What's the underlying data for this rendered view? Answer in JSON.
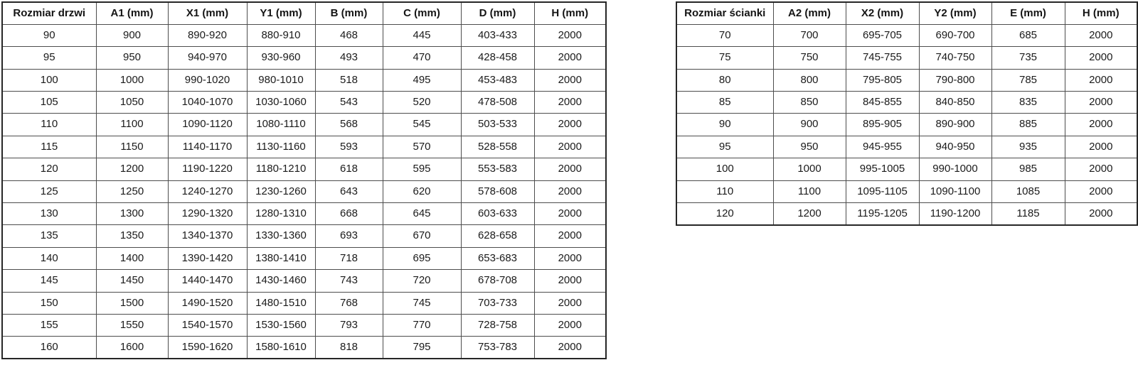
{
  "tables": [
    {
      "name": "door-size-table",
      "headers": [
        "Rozmiar drzwi",
        "A1 (mm)",
        "X1 (mm)",
        "Y1 (mm)",
        "B (mm)",
        "C (mm)",
        "D (mm)",
        "H (mm)"
      ],
      "rows": [
        [
          "90",
          "900",
          "890-920",
          "880-910",
          "468",
          "445",
          "403-433",
          "2000"
        ],
        [
          "95",
          "950",
          "940-970",
          "930-960",
          "493",
          "470",
          "428-458",
          "2000"
        ],
        [
          "100",
          "1000",
          "990-1020",
          "980-1010",
          "518",
          "495",
          "453-483",
          "2000"
        ],
        [
          "105",
          "1050",
          "1040-1070",
          "1030-1060",
          "543",
          "520",
          "478-508",
          "2000"
        ],
        [
          "110",
          "1100",
          "1090-1120",
          "1080-1110",
          "568",
          "545",
          "503-533",
          "2000"
        ],
        [
          "115",
          "1150",
          "1140-1170",
          "1130-1160",
          "593",
          "570",
          "528-558",
          "2000"
        ],
        [
          "120",
          "1200",
          "1190-1220",
          "1180-1210",
          "618",
          "595",
          "553-583",
          "2000"
        ],
        [
          "125",
          "1250",
          "1240-1270",
          "1230-1260",
          "643",
          "620",
          "578-608",
          "2000"
        ],
        [
          "130",
          "1300",
          "1290-1320",
          "1280-1310",
          "668",
          "645",
          "603-633",
          "2000"
        ],
        [
          "135",
          "1350",
          "1340-1370",
          "1330-1360",
          "693",
          "670",
          "628-658",
          "2000"
        ],
        [
          "140",
          "1400",
          "1390-1420",
          "1380-1410",
          "718",
          "695",
          "653-683",
          "2000"
        ],
        [
          "145",
          "1450",
          "1440-1470",
          "1430-1460",
          "743",
          "720",
          "678-708",
          "2000"
        ],
        [
          "150",
          "1500",
          "1490-1520",
          "1480-1510",
          "768",
          "745",
          "703-733",
          "2000"
        ],
        [
          "155",
          "1550",
          "1540-1570",
          "1530-1560",
          "793",
          "770",
          "728-758",
          "2000"
        ],
        [
          "160",
          "1600",
          "1590-1620",
          "1580-1610",
          "818",
          "795",
          "753-783",
          "2000"
        ]
      ]
    },
    {
      "name": "wall-panel-size-table",
      "headers": [
        "Rozmiar ścianki",
        "A2 (mm)",
        "X2 (mm)",
        "Y2 (mm)",
        "E (mm)",
        "H (mm)"
      ],
      "rows": [
        [
          "70",
          "700",
          "695-705",
          "690-700",
          "685",
          "2000"
        ],
        [
          "75",
          "750",
          "745-755",
          "740-750",
          "735",
          "2000"
        ],
        [
          "80",
          "800",
          "795-805",
          "790-800",
          "785",
          "2000"
        ],
        [
          "85",
          "850",
          "845-855",
          "840-850",
          "835",
          "2000"
        ],
        [
          "90",
          "900",
          "895-905",
          "890-900",
          "885",
          "2000"
        ],
        [
          "95",
          "950",
          "945-955",
          "940-950",
          "935",
          "2000"
        ],
        [
          "100",
          "1000",
          "995-1005",
          "990-1000",
          "985",
          "2000"
        ],
        [
          "110",
          "1100",
          "1095-1105",
          "1090-1100",
          "1085",
          "2000"
        ],
        [
          "120",
          "1200",
          "1195-1205",
          "1190-1200",
          "1185",
          "2000"
        ]
      ]
    }
  ]
}
